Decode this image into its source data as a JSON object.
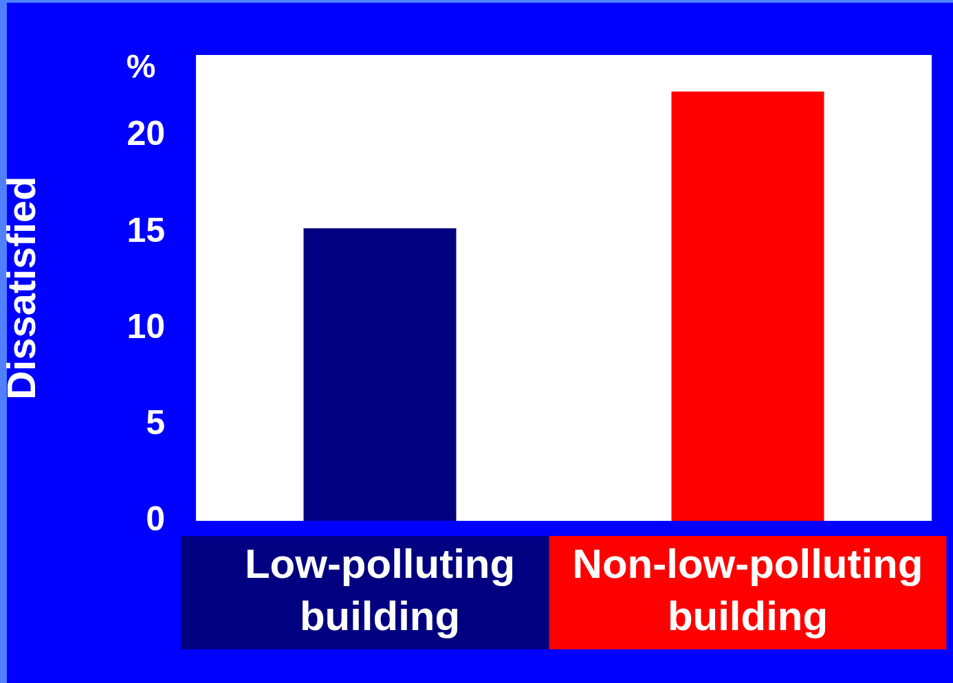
{
  "chart_data": {
    "type": "bar",
    "ylabel": "Dissatisfied",
    "annotations": [
      "%"
    ],
    "categories": [
      "Low-polluting building",
      "Non-low-polluting building"
    ],
    "values": [
      15.2,
      22.3
    ],
    "colors": [
      "#000080",
      "#ff0000"
    ],
    "ylim": [
      0,
      24.2
    ],
    "yticks": [
      0,
      5,
      10,
      15,
      20
    ],
    "grid": false,
    "legend": false
  }
}
